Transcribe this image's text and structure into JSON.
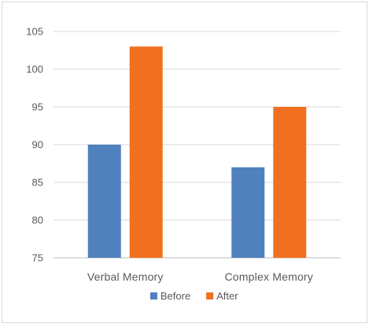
{
  "chart_data": {
    "type": "bar",
    "title": "",
    "xlabel": "",
    "ylabel": "",
    "categories": [
      "Verbal Memory",
      "Complex Memory"
    ],
    "series": [
      {
        "name": "Before",
        "values": [
          90,
          87
        ],
        "color": "#4f81bd"
      },
      {
        "name": "After",
        "values": [
          103,
          95
        ],
        "color": "#f07020"
      }
    ],
    "ylim": [
      75,
      105
    ],
    "yticks": [
      75,
      80,
      85,
      90,
      95,
      100,
      105
    ],
    "grid": true,
    "legend_position": "bottom"
  }
}
